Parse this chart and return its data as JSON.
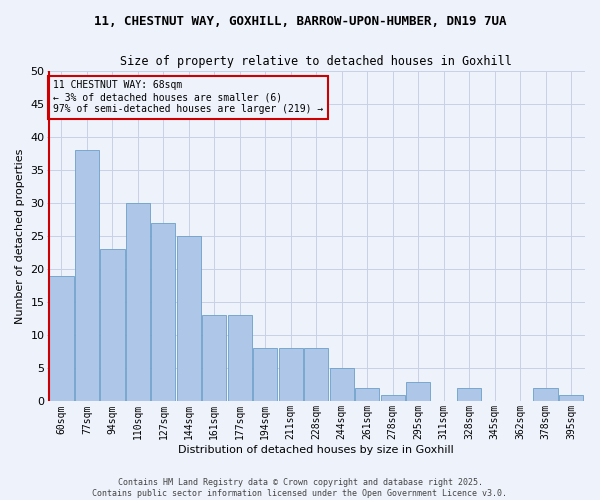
{
  "title_line1": "11, CHESTNUT WAY, GOXHILL, BARROW-UPON-HUMBER, DN19 7UA",
  "title_line2": "Size of property relative to detached houses in Goxhill",
  "xlabel": "Distribution of detached houses by size in Goxhill",
  "ylabel": "Number of detached properties",
  "categories": [
    "60sqm",
    "77sqm",
    "94sqm",
    "110sqm",
    "127sqm",
    "144sqm",
    "161sqm",
    "177sqm",
    "194sqm",
    "211sqm",
    "228sqm",
    "244sqm",
    "261sqm",
    "278sqm",
    "295sqm",
    "311sqm",
    "328sqm",
    "345sqm",
    "362sqm",
    "378sqm",
    "395sqm"
  ],
  "values": [
    19,
    38,
    23,
    30,
    27,
    25,
    13,
    13,
    8,
    8,
    8,
    5,
    2,
    1,
    3,
    0,
    2,
    0,
    0,
    2,
    1
  ],
  "bar_color": "#aec6e8",
  "bar_edge_color": "#6b9fc8",
  "annotation_box_color": "#cc0000",
  "annotation_line1": "11 CHESTNUT WAY: 68sqm",
  "annotation_line2": "← 3% of detached houses are smaller (6)",
  "annotation_line3": "97% of semi-detached houses are larger (219) →",
  "vline_color": "#cc0000",
  "ylim": [
    0,
    50
  ],
  "yticks": [
    0,
    5,
    10,
    15,
    20,
    25,
    30,
    35,
    40,
    45,
    50
  ],
  "background_color": "#eef2fb",
  "grid_color": "#c8d0e8",
  "footer": "Contains HM Land Registry data © Crown copyright and database right 2025.\nContains public sector information licensed under the Open Government Licence v3.0."
}
